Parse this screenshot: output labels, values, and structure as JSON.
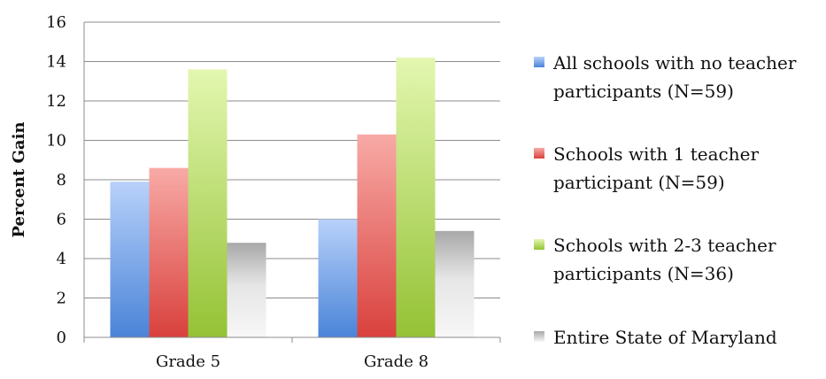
{
  "chart_data": {
    "type": "bar",
    "ylabel": "Percent Gain",
    "ylim": [
      0,
      16
    ],
    "yticks": [
      "0",
      "2",
      "4",
      "6",
      "8",
      "10",
      "12",
      "14",
      "16"
    ],
    "categories": [
      "Grade 5",
      "Grade 8"
    ],
    "grid": true,
    "legend_position": "right",
    "series": [
      {
        "name": "All schools with no teacher participants (N=59)",
        "values": [
          7.9,
          6.0
        ],
        "color": "#5b8fdd"
      },
      {
        "name": "Schools with 1 teacher participant (N=59)",
        "values": [
          8.6,
          10.3
        ],
        "color": "#e25a55"
      },
      {
        "name": "Schools with 2-3 teacher participants (N=36)",
        "values": [
          13.6,
          14.2
        ],
        "color": "#a4cf3c"
      },
      {
        "name": "Entire State of Maryland",
        "values": [
          4.8,
          5.4
        ],
        "color": "#c9c9c9"
      }
    ]
  }
}
